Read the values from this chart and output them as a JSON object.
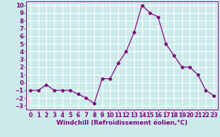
{
  "x": [
    0,
    1,
    2,
    3,
    4,
    5,
    6,
    7,
    8,
    9,
    10,
    11,
    12,
    13,
    14,
    15,
    16,
    17,
    18,
    19,
    20,
    21,
    22,
    23
  ],
  "y": [
    -1.0,
    -1.0,
    -0.3,
    -1.0,
    -1.0,
    -1.0,
    -1.5,
    -2.0,
    -2.7,
    0.5,
    0.5,
    2.5,
    4.0,
    6.5,
    10.0,
    9.0,
    8.5,
    5.0,
    3.5,
    2.0,
    2.0,
    1.0,
    -1.0,
    -1.7
  ],
  "line_color": "#800080",
  "marker": "D",
  "marker_size": 2.2,
  "bg_color": "#cceaea",
  "grid_color": "#ffffff",
  "xlabel": "Windchill (Refroidissement éolien,°C)",
  "xlim": [
    -0.5,
    23.5
  ],
  "ylim": [
    -3.5,
    10.5
  ],
  "yticks": [
    -3,
    -2,
    -1,
    0,
    1,
    2,
    3,
    4,
    5,
    6,
    7,
    8,
    9,
    10
  ],
  "xticks": [
    0,
    1,
    2,
    3,
    4,
    5,
    6,
    7,
    8,
    9,
    10,
    11,
    12,
    13,
    14,
    15,
    16,
    17,
    18,
    19,
    20,
    21,
    22,
    23
  ],
  "xlabel_fontsize": 6.5,
  "tick_fontsize": 6.0
}
